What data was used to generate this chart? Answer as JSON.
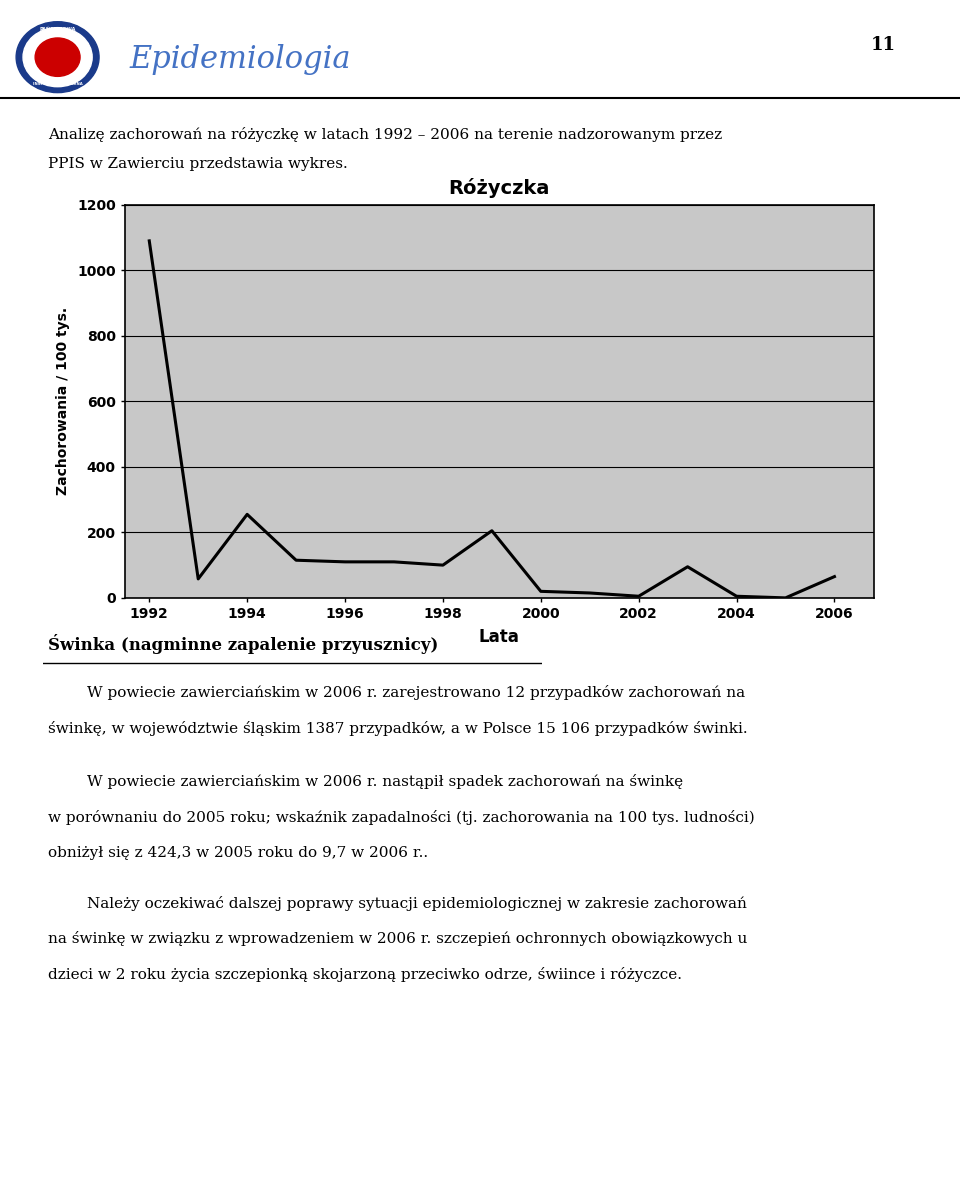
{
  "title": "Różyczka",
  "xlabel": "Lata",
  "ylabel": "Zachorowania / 100 tys.",
  "years": [
    1992,
    1993,
    1994,
    1995,
    1996,
    1997,
    1998,
    1999,
    2000,
    2001,
    2002,
    2003,
    2004,
    2005,
    2006
  ],
  "values": [
    1090,
    58,
    255,
    115,
    110,
    110,
    100,
    205,
    20,
    15,
    5,
    95,
    5,
    0,
    65
  ],
  "yticks": [
    0,
    200,
    400,
    600,
    800,
    1000,
    1200
  ],
  "xticks": [
    1992,
    1994,
    1996,
    1998,
    2000,
    2002,
    2004,
    2006
  ],
  "ylim": [
    0,
    1200
  ],
  "line_color": "#000000",
  "bg_color": "#C8C8C8",
  "page_bg": "#FFFFFF",
  "page_number": "11",
  "header_text": "Epidemiologia",
  "header_color": "#4472C4",
  "para1_line1": "Analizę zachorowań na różyczkę w latach 1992 – 2006 na terenie nadzorowanym przez",
  "para1_line2": "PPIS w Zawierciu przedstawia wykres.",
  "section_title": "Świnka (nagminne zapalenie przyusznicy)",
  "para2_line1": "        W powiecie zawierciańskim w 2006 r. zarejestrowano 12 przypadków zachorowań na",
  "para2_line2": "świnkę, w województwie śląskim 1387 przypadków, a w Polsce 15 106 przypadków świnki.",
  "para3_line1": "        W powiecie zawierciańskim w 2006 r. nastąpił spadek zachorowań na świnkę",
  "para3_line2": "w porównaniu do 2005 roku; wskaźnik zapadalności (tj. zachorowania na 100 tys. ludności)",
  "para3_line3": "obniżył się z 424,3 w 2005 roku do 9,7 w 2006 r..",
  "para4_line1": "        Należy oczekiwać dalszej poprawy sytuacji epidemiologicznej w zakresie zachorowań",
  "para4_line2": "na świnkę w związku z wprowadzeniem w 2006 r. szczepień ochronnych obowiązkowych u",
  "para4_line3": "dzieci w 2 roku życia szczepionką skojarzoną przeciwko odrze, świince i różyczce."
}
